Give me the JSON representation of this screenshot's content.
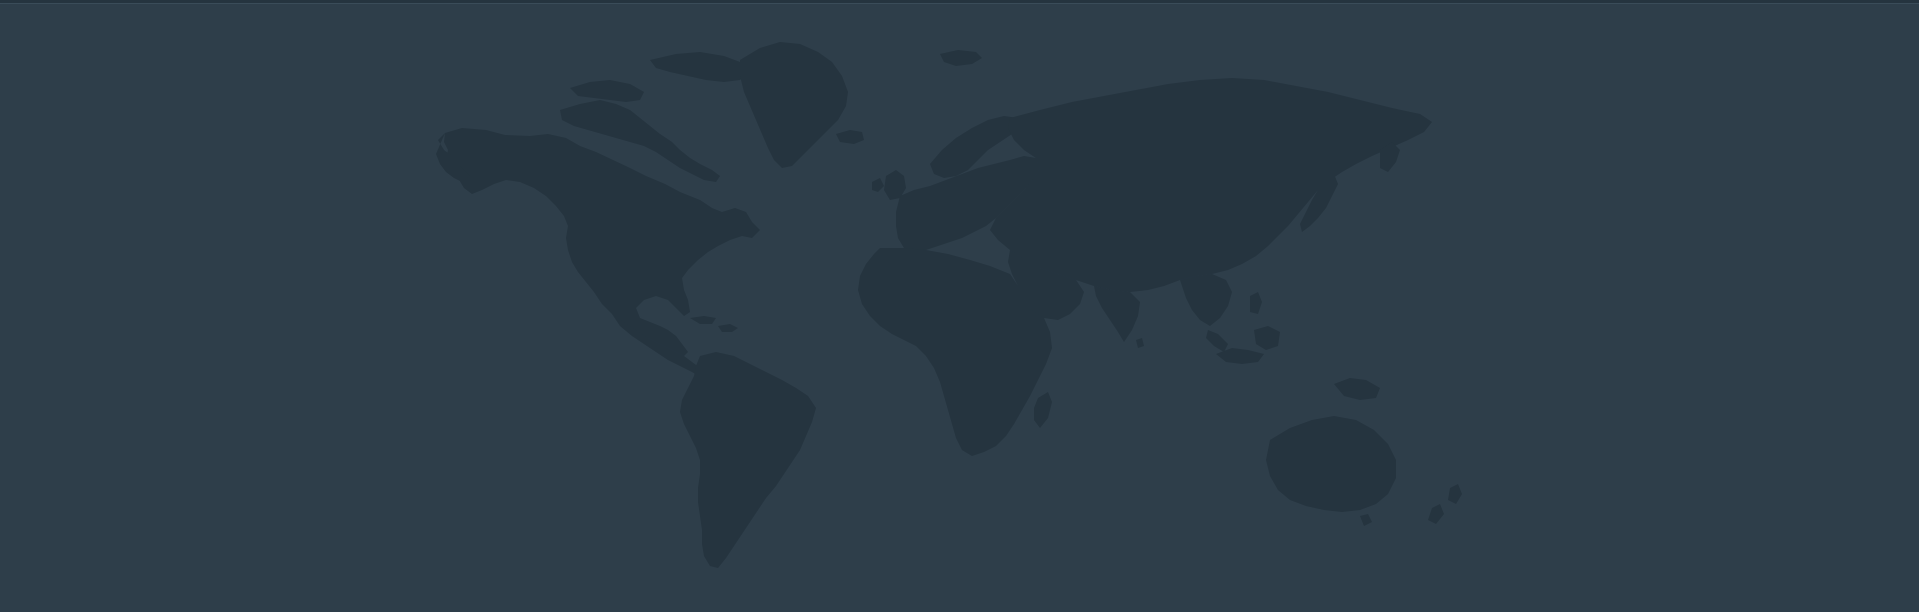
{
  "background_color": "#2e3e4a",
  "land_color": "#25343f",
  "top_rule_color": "#25343f",
  "map": {
    "type": "world-map-silhouette",
    "regions": [
      "north-america",
      "greenland",
      "arctic-islands",
      "central-america",
      "caribbean",
      "south-america",
      "iceland",
      "svalbard",
      "europe",
      "british-isles",
      "scandinavia",
      "africa",
      "madagascar",
      "middle-east",
      "russia-asia",
      "india",
      "southeast-asia",
      "japan",
      "indonesia",
      "new-guinea",
      "philippines",
      "australia",
      "new-zealand",
      "sri-lanka"
    ]
  }
}
